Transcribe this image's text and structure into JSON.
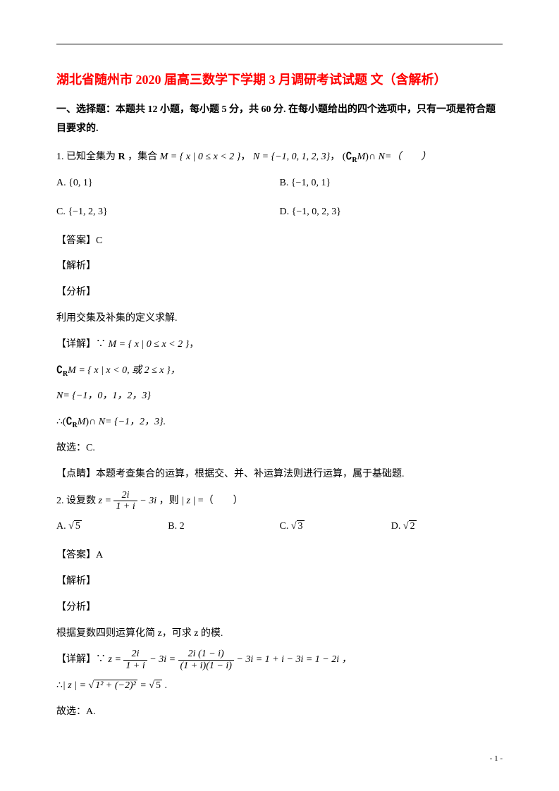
{
  "title": "湖北省随州市 2020 届高三数学下学期 3 月调研考试试题 文（含解析）",
  "section_header": "一、选择题：本题共 12 小题，每小题 5 分，共 60 分. 在每小题给出的四个选项中，只有一项是符合题目要求的.",
  "q1": {
    "stem_prefix": "1. 已知全集为 ",
    "stem_R": "R",
    "stem_mid1": " ，集合 ",
    "set_M": "M = { x | 0 ≤ x < 2 }",
    "stem_mid2": "， ",
    "set_N": "N = {−1, 0, 1, 2, 3}",
    "stem_mid3": "， ",
    "complement_expr_open": "(",
    "complement_C": "∁",
    "complement_sub": "R",
    "complement_M": "M",
    "complement_expr_close": ")",
    "cap": "∩",
    "eq_paren": "N=（　　）",
    "options": {
      "A": "A.  {0, 1}",
      "B": "B.  {−1, 0, 1}",
      "C": "C.  {−1, 2, 3}",
      "D": "D.  {−1, 0, 2, 3}"
    },
    "answer_label": "【答案】C",
    "jiexi_label": "【解析】",
    "fenxi_label": "【分析】",
    "fenxi_text": "利用交集及补集的定义求解.",
    "detail_label": "【详解】",
    "detail_since": "∵",
    "detail_M": "M = { x | 0 ≤ x < 2 }",
    "detail_comma": "，",
    "complement_line_prefix": "∁",
    "complement_line_sub": "R",
    "complement_line_M": "M",
    "complement_line_set": " = { x | x < 0, 或 2 ≤ x }，",
    "N_line": "N= {−1，0，1，2，3}",
    "therefore_prefix": "∴",
    "therefore_open": "(",
    "therefore_close": ")",
    "therefore_rest": "∩ N= {−1，2，3}.",
    "guxuan": "故选：C.",
    "dianjing": "【点睛】本题考查集合的运算，根据交、并、补运算法则进行运算，属于基础题."
  },
  "q2": {
    "stem_prefix": "2. 设复数 ",
    "z_eq": "z = ",
    "frac_num": "2i",
    "frac_den": "1 + i",
    "minus_3i": " − 3i",
    "stem_mid": " ，则 ",
    "abs_z": "| z |",
    "eq_paren": " =（　　）",
    "options": {
      "A_prefix": "A.  ",
      "A_val": "5",
      "B": "B.  2",
      "C_prefix": "C.  ",
      "C_val": "3",
      "D_prefix": "D.  ",
      "D_val": "2"
    },
    "answer_label": "【答案】A",
    "jiexi_label": "【解析】",
    "fenxi_label": "【分析】",
    "fenxi_text": "根据复数四则运算化简 z，可求 z 的模.",
    "detail_label": "【详解】",
    "detail_since": "∵",
    "detail_z": "z = ",
    "frac2_num": "2i (1 − i)",
    "frac2_den": "(1 + i)(1 − i)",
    "detail_rest": " − 3i = 1 + i − 3i = 1 − 2i ，",
    "therefore_prefix": "∴",
    "therefore_abs_z": "| z | = ",
    "sqrt_inner": "1² + (−2)²",
    "sqrt_eq": " = ",
    "sqrt_5": "5",
    "therefore_period": " .",
    "guxuan": "故选：A."
  },
  "page_number": "- 1 -",
  "colors": {
    "title_color": "#ff0000",
    "text_color": "#000000",
    "background": "#ffffff"
  }
}
